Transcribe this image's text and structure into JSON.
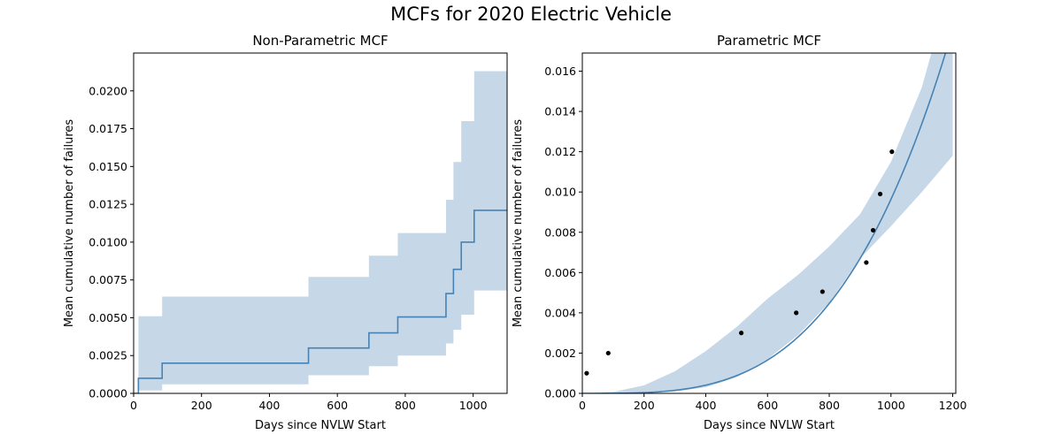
{
  "figure": {
    "title": "MCFs for 2020 Electric Vehicle"
  },
  "chart_data": [
    {
      "type": "line",
      "subtype": "step-with-confidence-band",
      "title": "Non-Parametric MCF",
      "xlabel": "Days since NVLW Start",
      "ylabel": "Mean cumulative number of failures",
      "xlim": [
        0,
        1100
      ],
      "ylim": [
        0,
        0.0225
      ],
      "xticks": [
        0,
        200,
        400,
        600,
        800,
        1000
      ],
      "yticks": [
        0.0,
        0.0025,
        0.005,
        0.0075,
        0.01,
        0.0125,
        0.015,
        0.0175,
        0.02
      ],
      "ytick_labels": [
        "0.0000",
        "0.0025",
        "0.0050",
        "0.0075",
        "0.0100",
        "0.0125",
        "0.0150",
        "0.0175",
        "0.0200"
      ],
      "line_color": "#4682b4",
      "band_color": "#c6d8e8",
      "grid": false,
      "steps": [
        {
          "x": 14,
          "mcf": 0.001,
          "lower": 0.0002,
          "upper": 0.0051
        },
        {
          "x": 84,
          "mcf": 0.002,
          "lower": 0.0006,
          "upper": 0.0064
        },
        {
          "x": 515,
          "mcf": 0.003,
          "lower": 0.0012,
          "upper": 0.0077
        },
        {
          "x": 693,
          "mcf": 0.004,
          "lower": 0.0018,
          "upper": 0.0091
        },
        {
          "x": 778,
          "mcf": 0.00505,
          "lower": 0.0025,
          "upper": 0.0106
        },
        {
          "x": 920,
          "mcf": 0.0066,
          "lower": 0.0033,
          "upper": 0.0128
        },
        {
          "x": 942,
          "mcf": 0.0082,
          "lower": 0.0042,
          "upper": 0.0153
        },
        {
          "x": 965,
          "mcf": 0.01,
          "lower": 0.0052,
          "upper": 0.018
        },
        {
          "x": 1003,
          "mcf": 0.0121,
          "lower": 0.0068,
          "upper": 0.0213
        }
      ],
      "x_end": 1100
    },
    {
      "type": "line",
      "subtype": "fit-with-points",
      "title": "Parametric MCF",
      "xlabel": "Days since NVLW Start",
      "ylabel": "Mean cumulative number of failures",
      "xlim": [
        0,
        1210
      ],
      "ylim": [
        0,
        0.0169
      ],
      "xticks": [
        0,
        200,
        400,
        600,
        800,
        1000,
        1200
      ],
      "yticks": [
        0.0,
        0.002,
        0.004,
        0.006,
        0.008,
        0.01,
        0.012,
        0.014,
        0.016
      ],
      "ytick_labels": [
        "0.000",
        "0.002",
        "0.004",
        "0.006",
        "0.008",
        "0.010",
        "0.012",
        "0.014",
        "0.016"
      ],
      "line_color": "#4682b4",
      "band_color": "#c6d8e8",
      "point_color": "#000000",
      "grid": false,
      "fit": {
        "model": "power-law",
        "alpha": 4.306e-13,
        "beta": 3.45
      },
      "band": [
        {
          "x": 0,
          "lower": 0,
          "upper": 0
        },
        {
          "x": 100,
          "lower": 0,
          "upper": 7e-05
        },
        {
          "x": 200,
          "lower": 1e-05,
          "upper": 0.0004
        },
        {
          "x": 300,
          "lower": 0.0001,
          "upper": 0.0011
        },
        {
          "x": 400,
          "lower": 0.0003,
          "upper": 0.0021
        },
        {
          "x": 500,
          "lower": 0.0008,
          "upper": 0.0033
        },
        {
          "x": 600,
          "lower": 0.0017,
          "upper": 0.0047
        },
        {
          "x": 700,
          "lower": 0.0029,
          "upper": 0.0059
        },
        {
          "x": 800,
          "lower": 0.0045,
          "upper": 0.0073
        },
        {
          "x": 900,
          "lower": 0.0067,
          "upper": 0.0089
        },
        {
          "x": 1000,
          "lower": 0.0083,
          "upper": 0.0115
        },
        {
          "x": 1100,
          "lower": 0.01,
          "upper": 0.0152
        },
        {
          "x": 1200,
          "lower": 0.0118,
          "upper": 0.0207
        }
      ],
      "points": [
        {
          "x": 14,
          "y": 0.001
        },
        {
          "x": 84,
          "y": 0.002
        },
        {
          "x": 515,
          "y": 0.003
        },
        {
          "x": 693,
          "y": 0.004
        },
        {
          "x": 778,
          "y": 0.00505
        },
        {
          "x": 920,
          "y": 0.0065
        },
        {
          "x": 942,
          "y": 0.0081
        },
        {
          "x": 965,
          "y": 0.0099
        },
        {
          "x": 1003,
          "y": 0.012
        }
      ]
    }
  ]
}
